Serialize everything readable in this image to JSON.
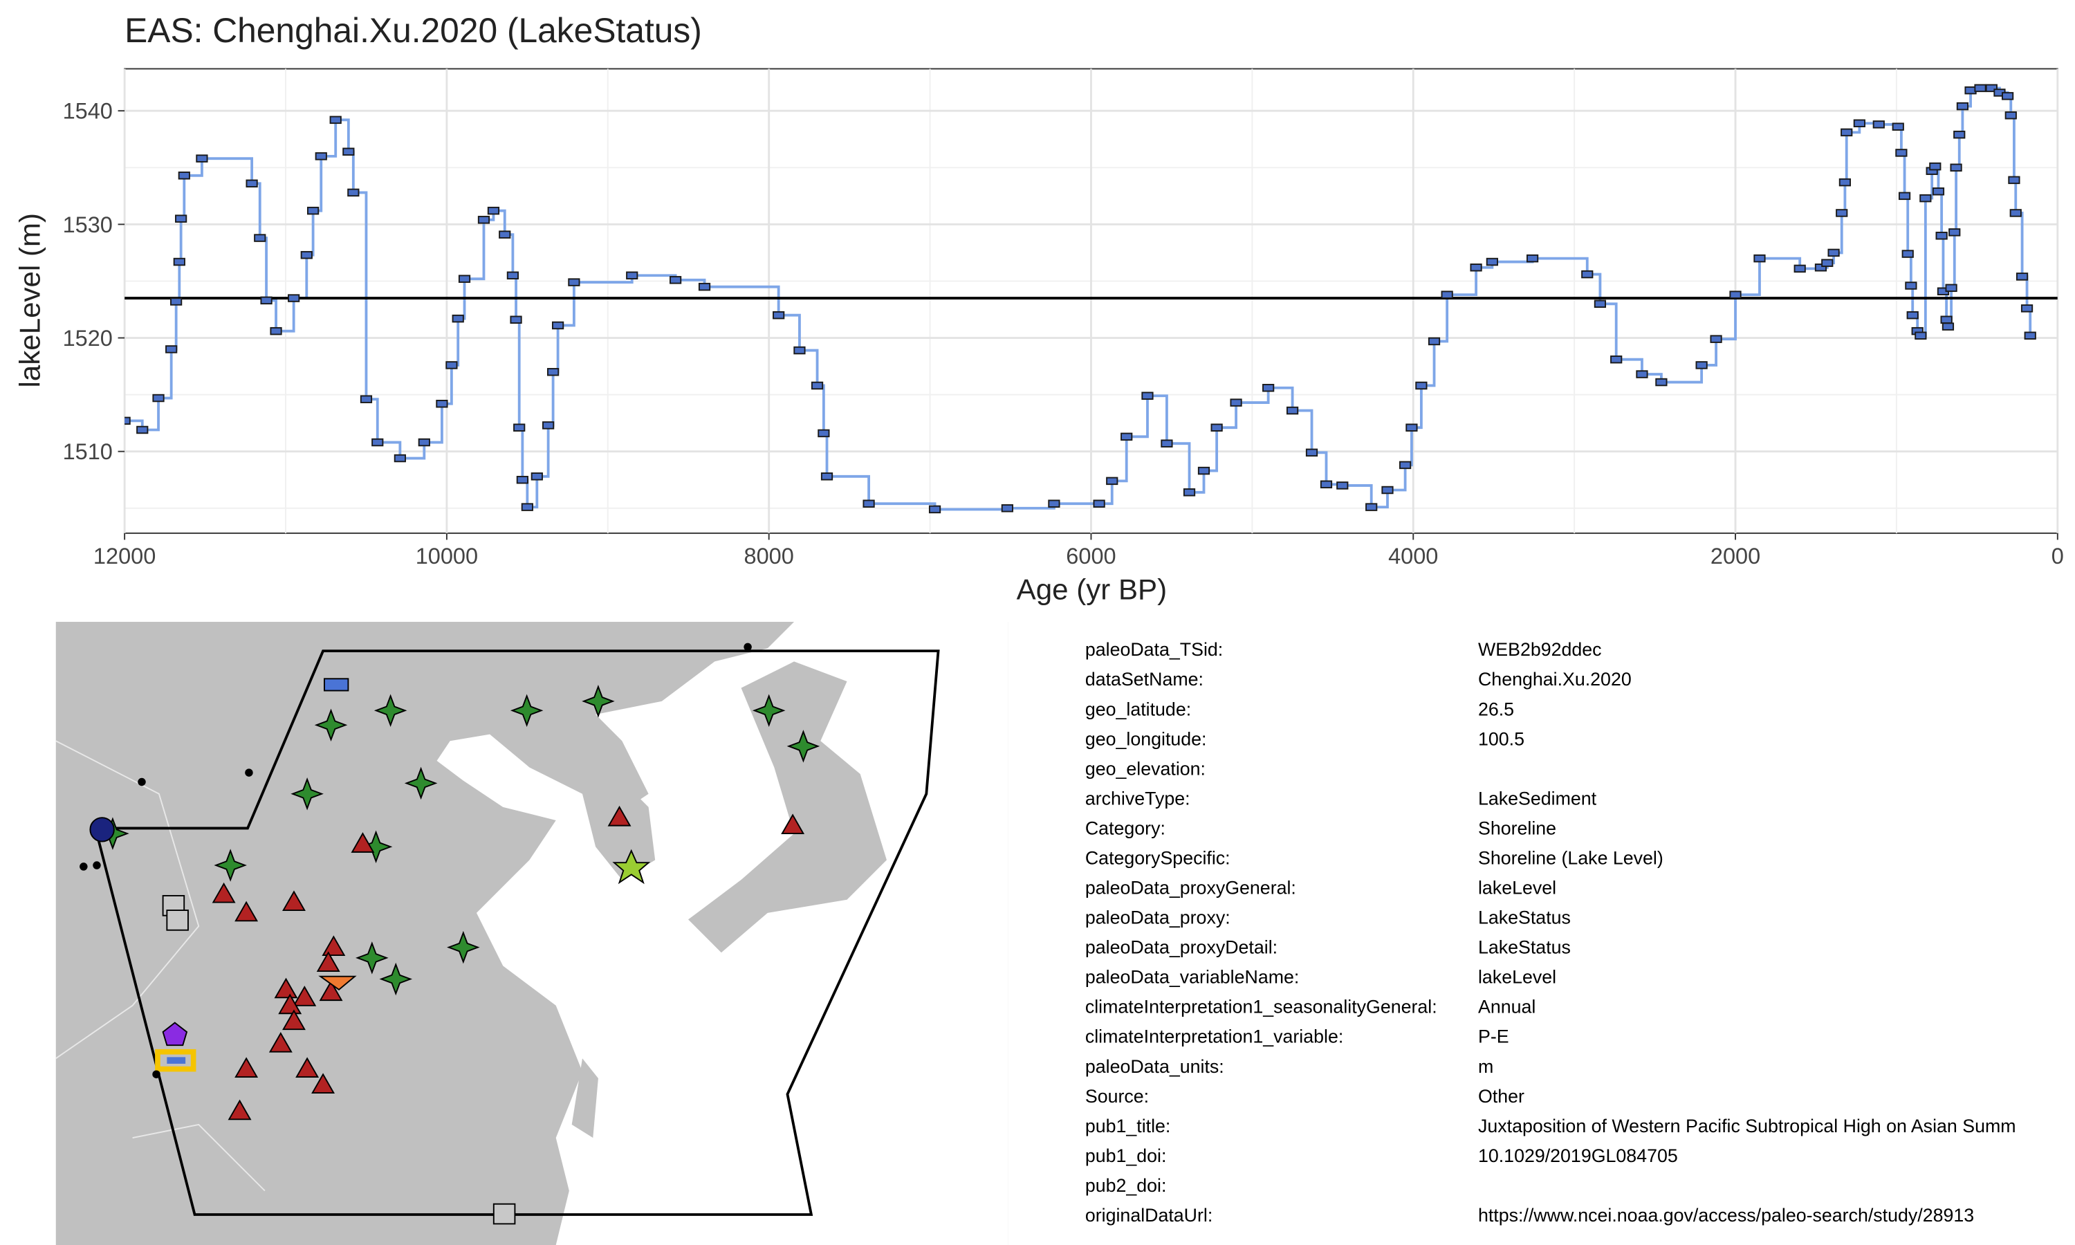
{
  "chart_data": {
    "type": "step",
    "title": "EAS: Chenghai.Xu.2020 (LakeStatus)",
    "x_label": "Age (yr BP)",
    "y_label": "lakeLevel (m)",
    "xlim": [
      12000,
      0
    ],
    "ylim": [
      1502.8,
      1543.7
    ],
    "xticks": [
      12000,
      10000,
      8000,
      6000,
      4000,
      2000,
      0
    ],
    "yticks": [
      1510,
      1520,
      1530,
      1540
    ],
    "grid": true,
    "reference_line": 1523.5,
    "series": [
      {
        "color": "#7ea6e8",
        "x": [
          12000,
          11890,
          11790,
          11710,
          11680,
          11660,
          11650,
          11630,
          11520,
          11210,
          11160,
          11120,
          11060,
          10950,
          10870,
          10830,
          10780,
          10690,
          10610,
          10580,
          10500,
          10430,
          10290,
          10140,
          10030,
          9970,
          9930,
          9890,
          9770,
          9710,
          9640,
          9590,
          9570,
          9550,
          9530,
          9500,
          9440,
          9370,
          9340,
          9310,
          9210,
          8850,
          8580,
          8400,
          7940,
          7810,
          7700,
          7660,
          7640,
          7380,
          6970,
          6520,
          6230,
          5950,
          5870,
          5780,
          5650,
          5530,
          5390,
          5300,
          5220,
          5100,
          4900,
          4750,
          4630,
          4540,
          4440,
          4260,
          4160,
          4050,
          4010,
          3950,
          3870,
          3790,
          3610,
          3510,
          3260,
          2920,
          2840,
          2740,
          2580,
          2460,
          2210,
          2120,
          2000,
          1850,
          1600,
          1470,
          1430,
          1390,
          1340,
          1320,
          1310,
          1230,
          1110,
          990,
          970,
          950,
          930,
          910,
          900,
          870,
          850,
          820,
          780,
          760,
          740,
          720,
          710,
          690,
          680,
          660,
          640,
          630,
          610,
          590,
          540,
          480,
          410,
          360,
          310,
          290,
          270,
          260,
          220,
          190,
          170
        ],
        "values": [
          1512.7,
          1511.9,
          1514.7,
          1519.0,
          1523.2,
          1526.7,
          1530.5,
          1534.3,
          1535.8,
          1533.6,
          1528.8,
          1523.3,
          1520.6,
          1523.5,
          1527.3,
          1531.2,
          1536.0,
          1539.2,
          1536.4,
          1532.8,
          1514.6,
          1510.8,
          1509.4,
          1510.8,
          1514.2,
          1517.6,
          1521.7,
          1525.2,
          1530.4,
          1531.2,
          1529.1,
          1525.5,
          1521.6,
          1512.1,
          1507.5,
          1505.1,
          1507.8,
          1512.3,
          1517.0,
          1521.1,
          1524.9,
          1525.5,
          1525.1,
          1524.5,
          1522.0,
          1518.9,
          1515.8,
          1511.6,
          1507.8,
          1505.4,
          1504.9,
          1505.0,
          1505.4,
          1505.4,
          1507.4,
          1511.3,
          1514.9,
          1510.7,
          1506.4,
          1508.3,
          1512.1,
          1514.3,
          1515.6,
          1513.6,
          1509.9,
          1507.1,
          1507.0,
          1505.1,
          1506.6,
          1508.8,
          1512.1,
          1515.8,
          1519.7,
          1523.8,
          1526.2,
          1526.7,
          1527.0,
          1525.6,
          1523.0,
          1518.1,
          1516.8,
          1516.1,
          1517.6,
          1519.9,
          1523.8,
          1527.0,
          1526.1,
          1526.2,
          1526.6,
          1527.5,
          1531.0,
          1533.7,
          1538.1,
          1538.9,
          1538.8,
          1538.6,
          1536.3,
          1532.5,
          1527.4,
          1524.6,
          1522.0,
          1520.6,
          1520.2,
          1532.3,
          1534.7,
          1535.1,
          1532.9,
          1529.0,
          1524.1,
          1521.6,
          1521.0,
          1524.4,
          1529.3,
          1535.0,
          1537.9,
          1540.4,
          1541.8,
          1542.0,
          1542.0,
          1541.6,
          1541.3,
          1539.6,
          1533.9,
          1531.0,
          1525.4,
          1522.6,
          1520.2
        ]
      }
    ]
  },
  "metadata": {
    "rows": [
      [
        "paleoData_TSid:",
        "WEB2b92ddec"
      ],
      [
        "dataSetName:",
        "Chenghai.Xu.2020"
      ],
      [
        "geo_latitude:",
        "26.5"
      ],
      [
        "geo_longitude:",
        "100.5"
      ],
      [
        "geo_elevation:"
      ],
      [
        "archiveType:",
        "LakeSediment"
      ],
      [
        "Category:",
        "Shoreline"
      ],
      [
        "CategorySpecific:",
        "Shoreline (Lake Level)"
      ],
      [
        "paleoData_proxyGeneral:",
        "lakeLevel"
      ],
      [
        "paleoData_proxy:",
        "LakeStatus"
      ],
      [
        "paleoData_proxyDetail:",
        "LakeStatus"
      ],
      [
        "paleoData_variableName:",
        "lakeLevel"
      ],
      [
        "climateInterpretation1_seasonalityGeneral:",
        "Annual"
      ],
      [
        "climateInterpretation1_variable:",
        "P-E"
      ],
      [
        "paleoData_units:",
        "m"
      ],
      [
        "Source:",
        "Other"
      ],
      [
        "pub1_title:",
        "Juxtaposition of Western Pacific Subtropical High on Asian Summ"
      ],
      [
        "pub1_doi:",
        "10.1029/2019GL084705"
      ],
      [
        "pub2_doi:"
      ],
      [
        "originalDataUrl:",
        "https://www.ncei.noaa.gov/access/paleo-search/study/28913"
      ]
    ]
  }
}
